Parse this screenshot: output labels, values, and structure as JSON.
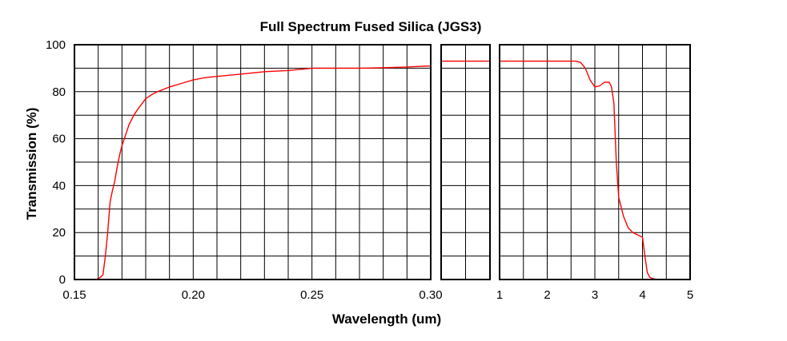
{
  "chart_data": {
    "type": "line",
    "title": "Full Spectrum Fused Silica (JGS3)",
    "xlabel": "Wavelength (um)",
    "ylabel": "Transmission (%)",
    "ylim": [
      0,
      100
    ],
    "yticks": [
      "0",
      "20",
      "40",
      "60",
      "80",
      "100"
    ],
    "grid": true,
    "colors": {
      "line": "#ff0000",
      "grid": "#000000",
      "frame": "#000000"
    },
    "panels": [
      {
        "xlim": [
          0.15,
          0.3
        ],
        "xticks": [
          {
            "value": 0.15,
            "label": "0.15"
          },
          {
            "value": 0.2,
            "label": "0.20"
          },
          {
            "value": 0.25,
            "label": "0.25"
          },
          {
            "value": 0.3,
            "label": "0.30"
          }
        ],
        "points": [
          [
            0.155,
            0
          ],
          [
            0.159,
            0
          ],
          [
            0.16,
            0.4
          ],
          [
            0.161,
            1
          ],
          [
            0.162,
            2
          ],
          [
            0.163,
            10
          ],
          [
            0.164,
            20
          ],
          [
            0.165,
            33
          ],
          [
            0.166,
            38
          ],
          [
            0.167,
            42
          ],
          [
            0.168,
            48
          ],
          [
            0.169,
            53
          ],
          [
            0.17,
            57
          ],
          [
            0.171,
            60
          ],
          [
            0.172,
            63
          ],
          [
            0.173,
            66
          ],
          [
            0.175,
            70
          ],
          [
            0.177,
            73
          ],
          [
            0.18,
            77
          ],
          [
            0.183,
            79
          ],
          [
            0.185,
            80
          ],
          [
            0.19,
            82
          ],
          [
            0.195,
            83.5
          ],
          [
            0.2,
            85
          ],
          [
            0.205,
            86
          ],
          [
            0.21,
            86.5
          ],
          [
            0.22,
            87.5
          ],
          [
            0.23,
            88.5
          ],
          [
            0.24,
            89
          ],
          [
            0.25,
            90
          ],
          [
            0.26,
            90
          ],
          [
            0.27,
            90
          ],
          [
            0.28,
            90.2
          ],
          [
            0.29,
            90.5
          ],
          [
            0.3,
            91
          ]
        ]
      },
      {
        "xlim": [
          0.3,
          0.9
        ],
        "xticks": [],
        "points": [
          [
            0.3,
            93
          ],
          [
            0.9,
            93
          ]
        ]
      },
      {
        "xlim": [
          1,
          5
        ],
        "xticks": [
          {
            "value": 1,
            "label": "1"
          },
          {
            "value": 2,
            "label": "2"
          },
          {
            "value": 3,
            "label": "3"
          },
          {
            "value": 4,
            "label": "4"
          },
          {
            "value": 5,
            "label": "5"
          }
        ],
        "points": [
          [
            1.0,
            93
          ],
          [
            2.0,
            93
          ],
          [
            2.6,
            93
          ],
          [
            2.7,
            92.5
          ],
          [
            2.8,
            90
          ],
          [
            2.9,
            85
          ],
          [
            3.0,
            82
          ],
          [
            3.1,
            82.5
          ],
          [
            3.2,
            84
          ],
          [
            3.3,
            84
          ],
          [
            3.35,
            82
          ],
          [
            3.4,
            75
          ],
          [
            3.45,
            50
          ],
          [
            3.5,
            35
          ],
          [
            3.6,
            27
          ],
          [
            3.7,
            22
          ],
          [
            3.8,
            20
          ],
          [
            3.9,
            19
          ],
          [
            4.0,
            18
          ],
          [
            4.05,
            10
          ],
          [
            4.1,
            3
          ],
          [
            4.15,
            1
          ],
          [
            4.2,
            0.5
          ],
          [
            4.3,
            0
          ]
        ]
      }
    ]
  }
}
